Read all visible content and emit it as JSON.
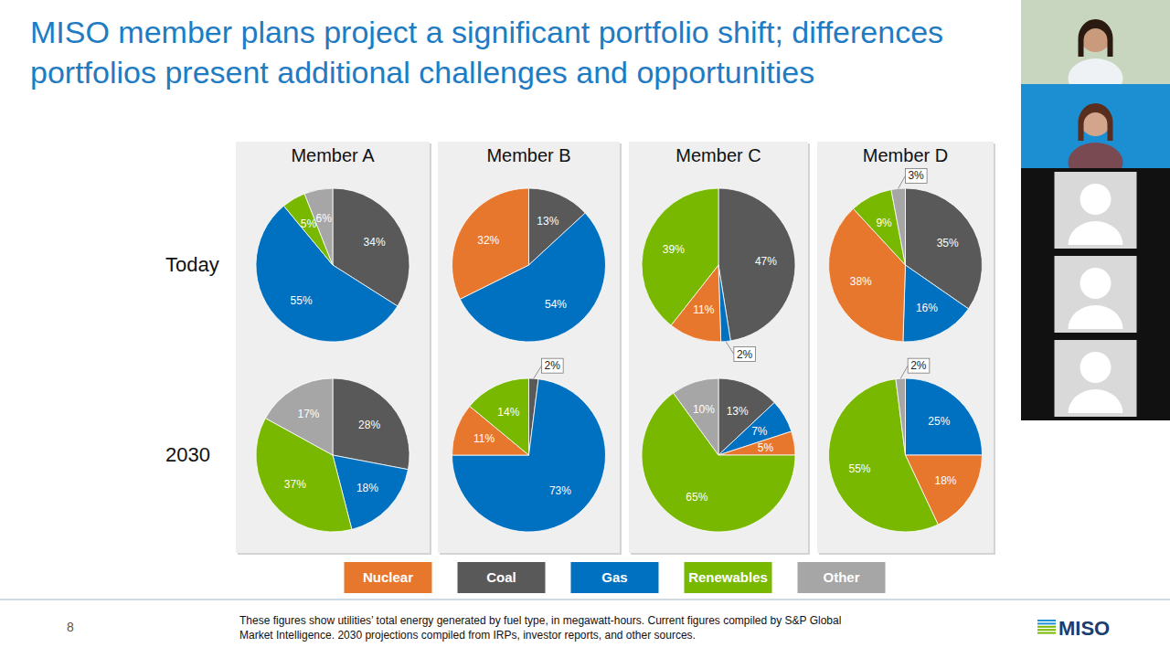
{
  "title_lines": [
    "MISO member plans project a significant portfolio shift; differences",
    "portfolios present additional challenges and opportunities"
  ],
  "row_labels": [
    "Today",
    "2030"
  ],
  "legend_entries": [
    {
      "name": "Nuclear",
      "color": "#e8772e"
    },
    {
      "name": "Coal",
      "color": "#595959"
    },
    {
      "name": "Gas",
      "color": "#0070c0"
    },
    {
      "name": "Renewables",
      "color": "#78b800"
    },
    {
      "name": "Other",
      "color": "#a6a6a6"
    }
  ],
  "footnote_lines": [
    "These figures show utilities’ total energy generated by fuel type, in megawatt-hours. Current figures compiled by S&P Global",
    "Market Intelligence. 2030 projections compiled from IRPs, investor reports, and other sources."
  ],
  "page_number": "8",
  "logo": "MISO",
  "chart_data": [
    {
      "type": "pie",
      "title": "Member A",
      "categories": [
        "Coal",
        "Gas",
        "Renewables",
        "Other"
      ],
      "values": [
        34,
        55,
        5,
        6
      ],
      "value_labels": [
        "34%",
        "55%",
        "5%",
        "6%"
      ],
      "data_labels": true
    },
    {
      "type": "pie",
      "title": "Member B",
      "categories": [
        "Coal",
        "Gas",
        "Nuclear"
      ],
      "values": [
        13,
        54,
        32
      ],
      "value_labels": [
        "13%",
        "54%",
        "32%"
      ],
      "data_labels": true
    },
    {
      "type": "pie",
      "title": "Member C",
      "categories": [
        "Coal",
        "Gas",
        "Nuclear",
        "Renewables"
      ],
      "values": [
        47,
        2,
        11,
        39
      ],
      "value_labels": [
        "47%",
        "2%",
        "11%",
        "39%"
      ],
      "data_labels": true
    },
    {
      "type": "pie",
      "title": "Member D",
      "categories": [
        "Coal",
        "Gas",
        "Nuclear",
        "Renewables",
        "Other"
      ],
      "values": [
        35,
        16,
        38,
        9,
        3
      ],
      "value_labels": [
        "35%",
        "16%",
        "38%",
        "9%",
        "3%"
      ],
      "data_labels": true
    },
    {
      "type": "pie",
      "categories": [
        "Coal",
        "Gas",
        "Renewables",
        "Other"
      ],
      "values": [
        28,
        18,
        37,
        17
      ],
      "value_labels": [
        "28%",
        "18%",
        "37%",
        "17%"
      ],
      "data_labels": true
    },
    {
      "type": "pie",
      "categories": [
        "Coal",
        "Gas",
        "Nuclear",
        "Renewables"
      ],
      "values": [
        2,
        73,
        11,
        14
      ],
      "value_labels": [
        "2%",
        "73%",
        "11%",
        "14%"
      ],
      "data_labels": true
    },
    {
      "type": "pie",
      "categories": [
        "Coal",
        "Gas",
        "Nuclear",
        "Renewables",
        "Other"
      ],
      "values": [
        13,
        7,
        5,
        65,
        10
      ],
      "value_labels": [
        "13%",
        "7%",
        "5%",
        "65%",
        "10%"
      ],
      "data_labels": true
    },
    {
      "type": "pie",
      "categories": [
        "Gas",
        "Nuclear",
        "Renewables",
        "Other"
      ],
      "values": [
        25,
        18,
        55,
        2
      ],
      "value_labels": [
        "25%",
        "18%",
        "55%",
        "2%"
      ],
      "data_labels": true
    }
  ]
}
